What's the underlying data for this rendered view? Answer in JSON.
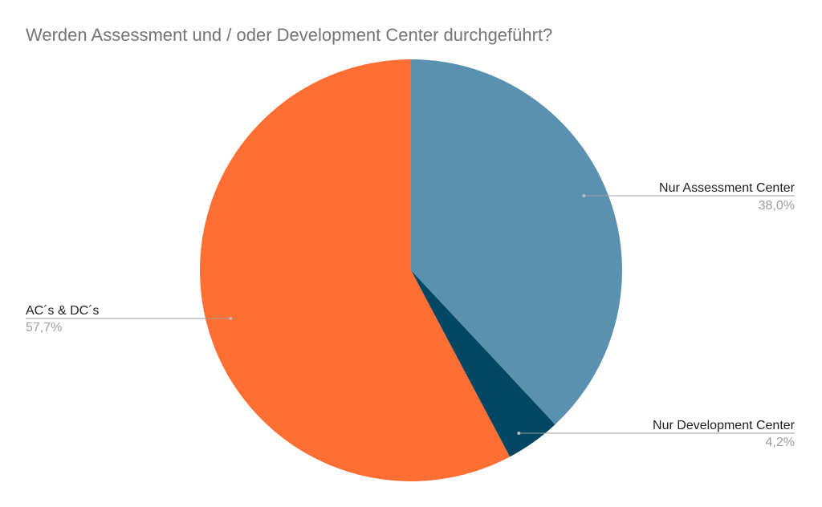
{
  "chart_data": {
    "type": "pie",
    "title": "Werden Assessment und / oder Development Center durchgeführt?",
    "start_angle_deg": 0,
    "direction": "clockwise",
    "slices": [
      {
        "label": "Nur Assessment Center",
        "value": 38.0,
        "value_label": "38,0%",
        "color": "#5a91b0"
      },
      {
        "label": "Nur Development Center",
        "value": 4.2,
        "value_label": "4,2%",
        "color": "#004763"
      },
      {
        "label": "AC´s & DC´s",
        "value": 57.7,
        "value_label": "57,7%",
        "color": "#ff6e33"
      }
    ]
  }
}
